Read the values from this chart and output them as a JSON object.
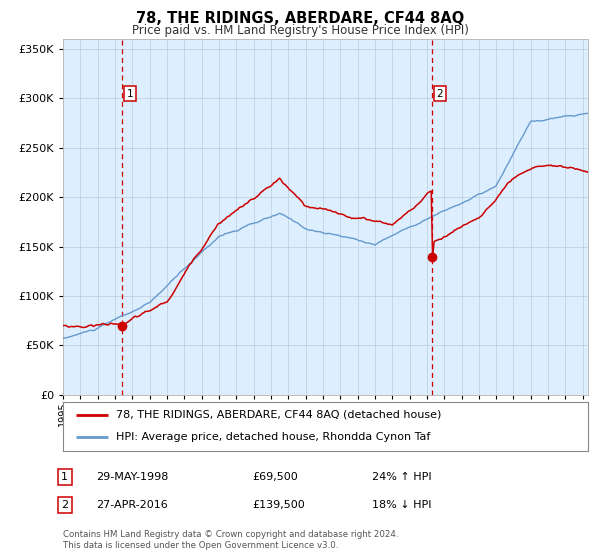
{
  "title": "78, THE RIDINGS, ABERDARE, CF44 8AQ",
  "subtitle": "Price paid vs. HM Land Registry's House Price Index (HPI)",
  "legend_line1": "78, THE RIDINGS, ABERDARE, CF44 8AQ (detached house)",
  "legend_line2": "HPI: Average price, detached house, Rhondda Cynon Taf",
  "footnote1": "Contains HM Land Registry data © Crown copyright and database right 2024.",
  "footnote2": "This data is licensed under the Open Government Licence v3.0.",
  "sale1_date": "29-MAY-1998",
  "sale1_price": "£69,500",
  "sale1_hpi": "24% ↑ HPI",
  "sale1_year": 1998.41,
  "sale1_value": 69500,
  "sale2_date": "27-APR-2016",
  "sale2_price": "£139,500",
  "sale2_hpi": "18% ↓ HPI",
  "sale2_year": 2016.32,
  "sale2_value": 139500,
  "red_color": "#cc0000",
  "blue_color": "#6699cc",
  "bg_color": "#ddeeff",
  "grid_color": "#bbccdd",
  "ylim": [
    0,
    360000
  ],
  "xlim_start": 1995.0,
  "xlim_end": 2025.3
}
